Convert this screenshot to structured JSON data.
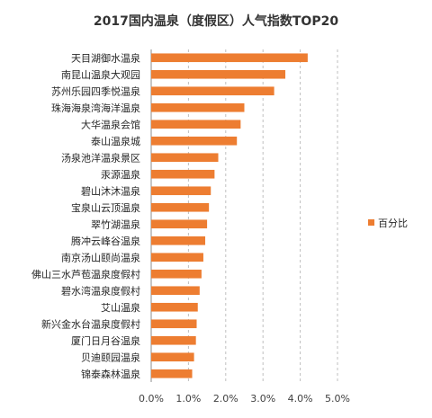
{
  "chart_data": {
    "type": "bar",
    "orientation": "horizontal",
    "title": "2017国内温泉（度假区）人气指数TOP20",
    "categories": [
      "天目湖御水温泉",
      "南昆山温泉大观园",
      "苏州乐园四季悦温泉",
      "珠海海泉湾海洋温泉",
      "大华温泉会馆",
      "泰山温泉城",
      "汤泉池洋温泉景区",
      "汞源温泉",
      "碧山沐沐温泉",
      "宝泉山云顶温泉",
      "翠竹湖温泉",
      "腾冲云峰谷温泉",
      "南京汤山颐尚温泉",
      "佛山三水芦苞温泉度假村",
      "碧水湾温泉度假村",
      "艾山温泉",
      "新兴金水台温泉度假村",
      "厦门日月谷温泉",
      "贝迪颐园温泉",
      "锦泰森林温泉"
    ],
    "series": [
      {
        "name": "百分比",
        "values": [
          4.2,
          3.6,
          3.3,
          2.5,
          2.4,
          2.3,
          1.8,
          1.7,
          1.6,
          1.55,
          1.5,
          1.45,
          1.4,
          1.35,
          1.3,
          1.25,
          1.22,
          1.2,
          1.15,
          1.1
        ]
      }
    ],
    "x_ticks": [
      "0.0%",
      "1.0%",
      "2.0%",
      "3.0%",
      "4.0%",
      "5.0%"
    ],
    "xlim": [
      0,
      5
    ],
    "grid": "vertical dashed",
    "legend_position": "right",
    "bar_color": "#ED7D31"
  }
}
